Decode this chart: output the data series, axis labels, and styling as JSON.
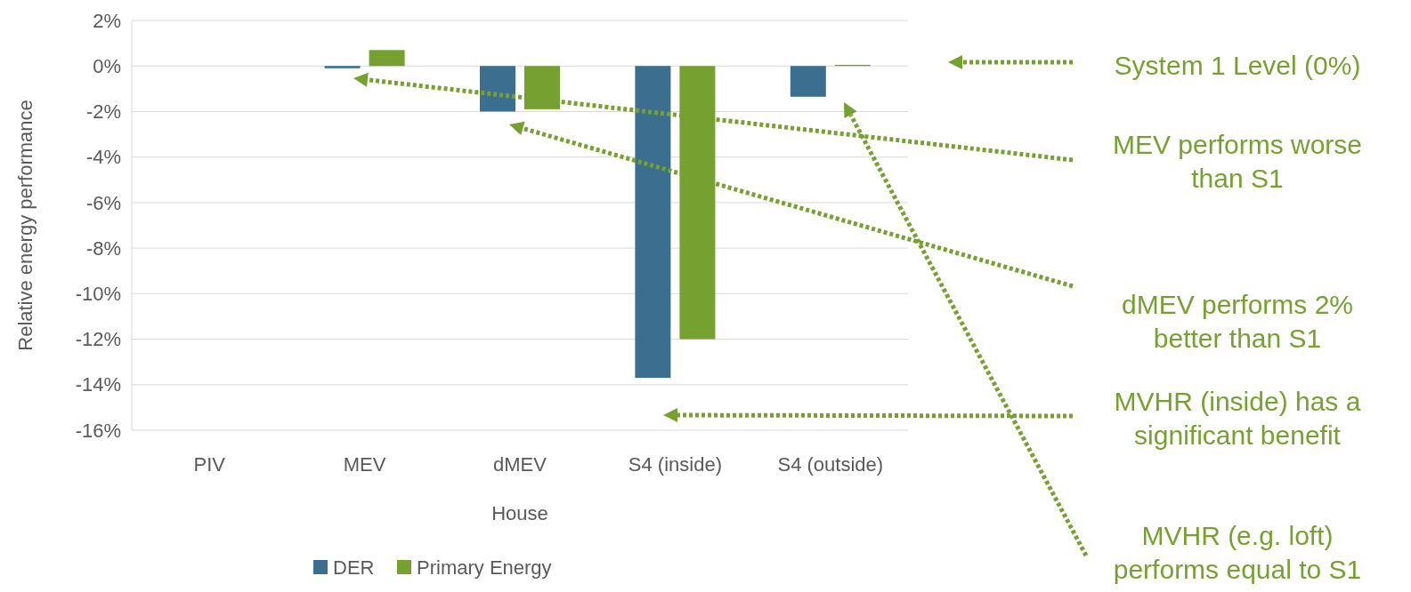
{
  "chart_data": {
    "type": "bar",
    "xlabel": "House",
    "ylabel": "Relative energy performance",
    "categories": [
      "PIV",
      "MEV",
      "dMEV",
      "S4 (inside)",
      "S4 (outside)"
    ],
    "series": [
      {
        "name": "DER",
        "color": "#3b6e8f",
        "values": [
          0,
          -0.1,
          -2.0,
          -13.7,
          -1.35
        ]
      },
      {
        "name": "Primary Energy",
        "color": "#76a130",
        "values": [
          0,
          0.7,
          -1.9,
          -12.0,
          0.05
        ]
      }
    ],
    "ylim": [
      -16,
      2
    ],
    "yticks": [
      {
        "value": 2,
        "label": "2%"
      },
      {
        "value": 0,
        "label": "0%"
      },
      {
        "value": -2,
        "label": "-2%"
      },
      {
        "value": -4,
        "label": "-4%"
      },
      {
        "value": -6,
        "label": "-6%"
      },
      {
        "value": -8,
        "label": "-8%"
      },
      {
        "value": -10,
        "label": "-10%"
      },
      {
        "value": -12,
        "label": "-12%"
      },
      {
        "value": -14,
        "label": "-14%"
      },
      {
        "value": -16,
        "label": "-16%"
      }
    ],
    "grid": "y",
    "legend": "bottom",
    "annotations": [
      "System 1 Level (0%)",
      "MEV performs worse than S1",
      "dMEV performs 2% better than S1",
      "MVHR (inside) has a significant benefit",
      "MVHR (e.g. loft) performs equal to S1"
    ]
  }
}
